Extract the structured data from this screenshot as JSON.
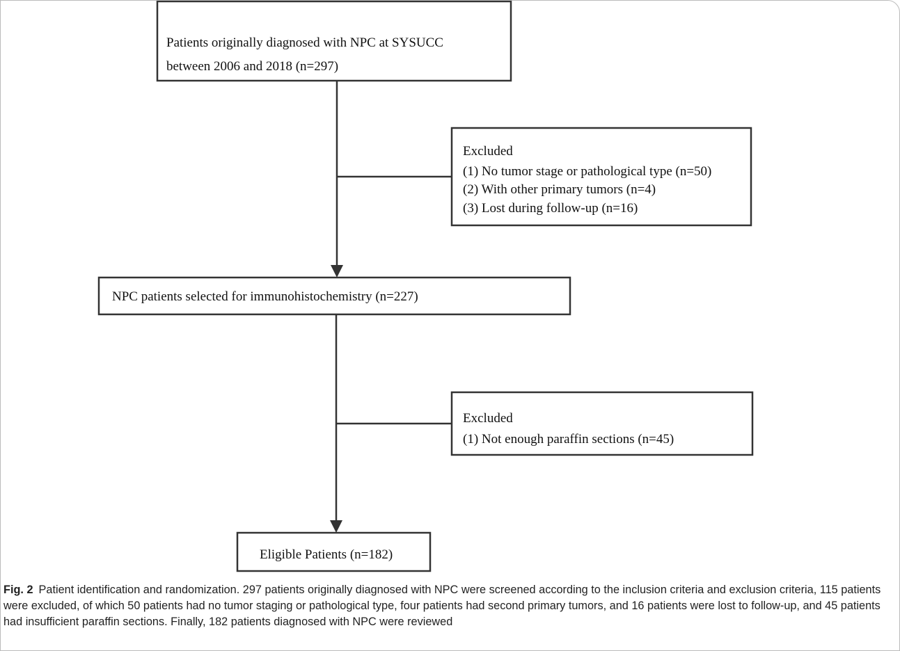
{
  "nodes": [
    {
      "lines": [
        "Patients originally diagnosed with NPC at SYSUCC",
        "between 2006 and 2018 (n=297)"
      ]
    },
    {
      "lines": [
        "Excluded",
        "(1) No tumor stage or pathological type (n=50)",
        "(2) With other primary tumors (n=4)",
        "(3) Lost during follow-up (n=16)"
      ]
    },
    {
      "lines": [
        "NPC patients selected for immunohistochemistry (n=227)"
      ]
    },
    {
      "lines": [
        "Excluded",
        "(1) Not enough paraffin sections (n=45)"
      ]
    },
    {
      "lines": [
        "Eligible Patients (n=182)"
      ]
    }
  ],
  "caption": {
    "label": "Fig. 2",
    "text": "Patient identification and randomization. 297 patients originally diagnosed with NPC were screened according to the inclusion criteria and exclusion criteria, 115 patients were excluded, of which 50 patients had no tumor staging or pathological type, four patients had second primary tumors, and 16 patients were lost to follow-up, and 45 patients had insufficient paraffin sections. Finally, 182 patients diagnosed with NPC were reviewed"
  }
}
